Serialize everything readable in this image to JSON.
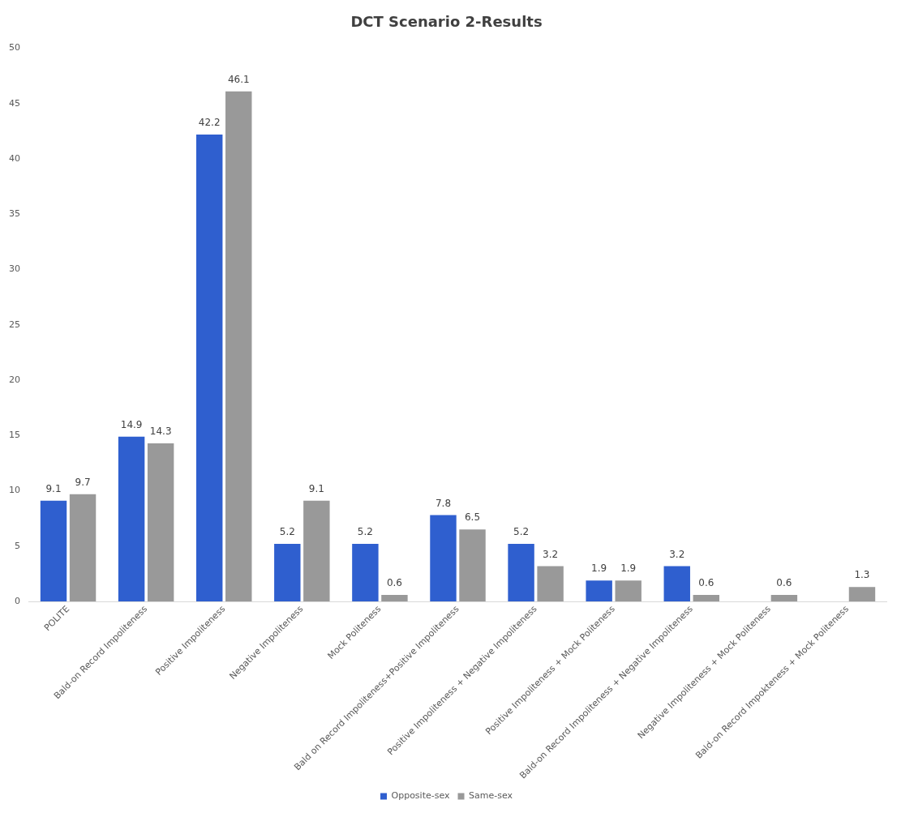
{
  "chart_data": {
    "type": "bar",
    "title": "DCT Scenario 2-Results",
    "categories": [
      "POLITE",
      "Bald-on Record Impoliteness",
      "Positive Impoliteness",
      "Negative Impoliteness",
      "Mock Politeness",
      "Bald on Record Impoliteness+Positive Impoliteness",
      "Positive Impoliteness + Negative Impoliteness",
      "Positive Impoliteness + Mock Politeness",
      "Bald-on Record Impoliteness + Negative Impoliteness",
      "Negative Impoliteness + Mock Politeness",
      "Bald-on Record Impokteness + Mock Politeness"
    ],
    "series": [
      {
        "name": "Opposite-sex",
        "color": "#2f5fcf",
        "values": [
          9.1,
          14.9,
          42.2,
          5.2,
          5.2,
          7.8,
          5.2,
          1.9,
          3.2,
          null,
          null
        ]
      },
      {
        "name": "Same-sex",
        "color": "#999999",
        "values": [
          9.7,
          14.3,
          46.1,
          9.1,
          0.6,
          6.5,
          3.2,
          1.9,
          0.6,
          0.6,
          1.3
        ]
      }
    ],
    "ylim": [
      0,
      50
    ],
    "yticks": [
      0,
      5,
      10,
      15,
      20,
      25,
      30,
      35,
      40,
      45,
      50
    ],
    "grid": false,
    "legend": "bottom",
    "data_labels": true
  }
}
